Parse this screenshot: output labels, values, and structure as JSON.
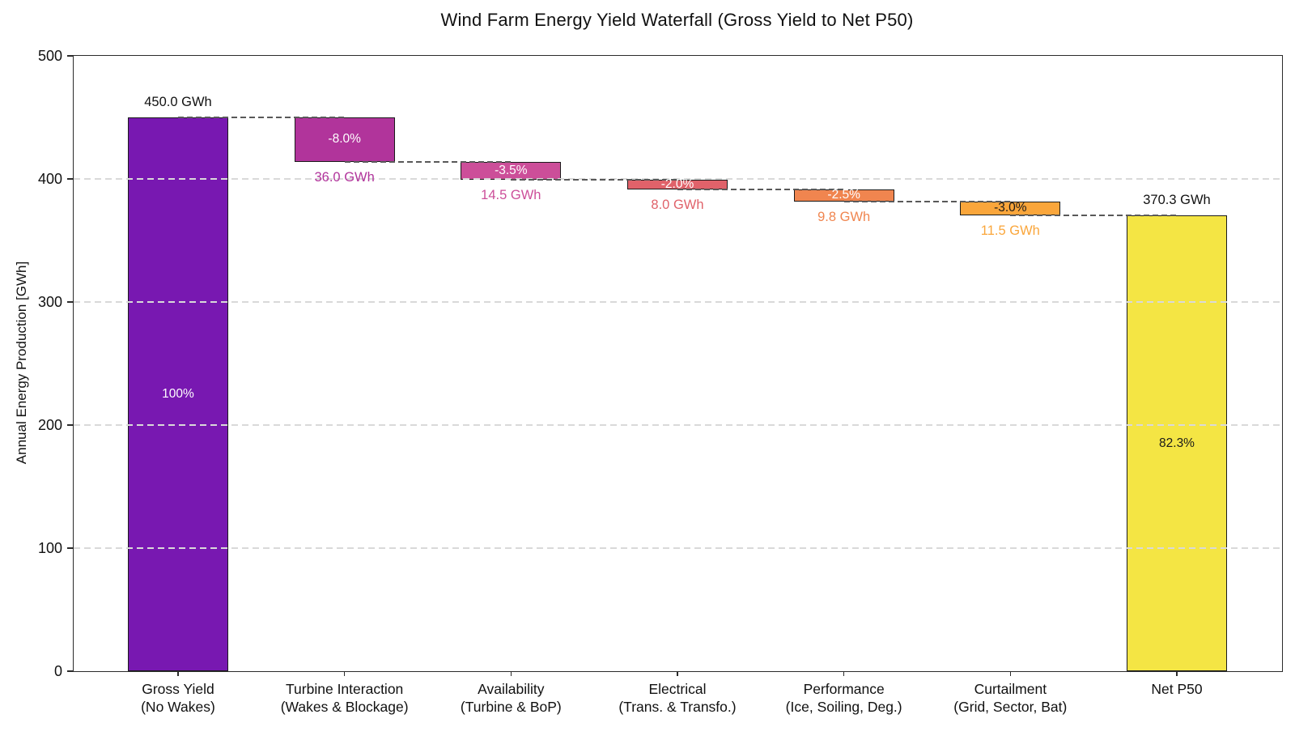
{
  "chart_data": {
    "type": "bar",
    "subtype": "waterfall",
    "title": "Wind Farm Energy Yield Waterfall (Gross Yield to Net P50)",
    "xlabel": "",
    "ylabel": "Annual Energy Production [GWh]",
    "ylim": [
      0,
      500
    ],
    "yticks": [
      0,
      100,
      200,
      300,
      400,
      500
    ],
    "grid": {
      "axis": "y",
      "style": "dashed",
      "color": "#d9d9d9",
      "drawn_over_bars": true
    },
    "connector_style": {
      "style": "dashed",
      "color": "#595959"
    },
    "categories": [
      "Gross Yield (No Wakes)",
      "Turbine Interaction (Wakes & Blockage)",
      "Availability (Turbine & BoP)",
      "Electrical (Trans. & Transfo.)",
      "Performance (Ice, Soiling, Deg.)",
      "Curtailment (Grid, Sector, Bat)",
      "Net P50"
    ],
    "bars": [
      {
        "category_line1": "Gross Yield",
        "category_line2": "(No Wakes)",
        "kind": "total",
        "base_gwh": 0,
        "top_gwh": 450.0,
        "value_gwh": 450.0,
        "color": "#7818B1",
        "inner_label": "100%",
        "inner_label_color": "#ffffff",
        "outside_top_label": "450.0 GWh"
      },
      {
        "category_line1": "Turbine Interaction",
        "category_line2": "(Wakes & Blockage)",
        "kind": "loss",
        "base_gwh": 414.0,
        "top_gwh": 450.0,
        "value_gwh": -36.0,
        "color": "#B1349B",
        "inner_label": "-8.0%",
        "inner_label_color": "#ffffff",
        "below_label": "36.0 GWh",
        "below_label_color": "#B1349B"
      },
      {
        "category_line1": "Availability",
        "category_line2": "(Turbine & BoP)",
        "kind": "loss",
        "base_gwh": 399.5,
        "top_gwh": 414.0,
        "value_gwh": -14.5,
        "color": "#CC4E99",
        "inner_label": "-3.5%",
        "inner_label_color": "#ffffff",
        "below_label": "14.5 GWh",
        "below_label_color": "#CC4E99"
      },
      {
        "category_line1": "Electrical",
        "category_line2": "(Trans. & Transfo.)",
        "kind": "loss",
        "base_gwh": 391.5,
        "top_gwh": 399.5,
        "value_gwh": -8.0,
        "color": "#E0626A",
        "inner_label": "-2.0%",
        "inner_label_color": "#ffffff",
        "below_label": "8.0 GWh",
        "below_label_color": "#E0626A"
      },
      {
        "category_line1": "Performance",
        "category_line2": "(Ice, Soiling, Deg.)",
        "kind": "loss",
        "base_gwh": 381.7,
        "top_gwh": 391.5,
        "value_gwh": -9.8,
        "color": "#F0854F",
        "inner_label": "-2.5%",
        "inner_label_color": "#ffffff",
        "below_label": "9.8 GWh",
        "below_label_color": "#F0854F"
      },
      {
        "category_line1": "Curtailment",
        "category_line2": "(Grid, Sector, Bat)",
        "kind": "loss",
        "base_gwh": 370.3,
        "top_gwh": 381.7,
        "value_gwh": -11.5,
        "color": "#FAA63B",
        "inner_label": "-3.0%",
        "inner_label_color": "#1a1a1a",
        "below_label": "11.5 GWh",
        "below_label_color": "#FAA63B"
      },
      {
        "category_line1": "Net P50",
        "category_line2": "",
        "kind": "total",
        "base_gwh": 0,
        "top_gwh": 370.3,
        "value_gwh": 370.3,
        "color": "#F4E544",
        "inner_label": "82.3%",
        "inner_label_color": "#1a1a1a",
        "outside_top_label": "370.3 GWh"
      }
    ]
  }
}
